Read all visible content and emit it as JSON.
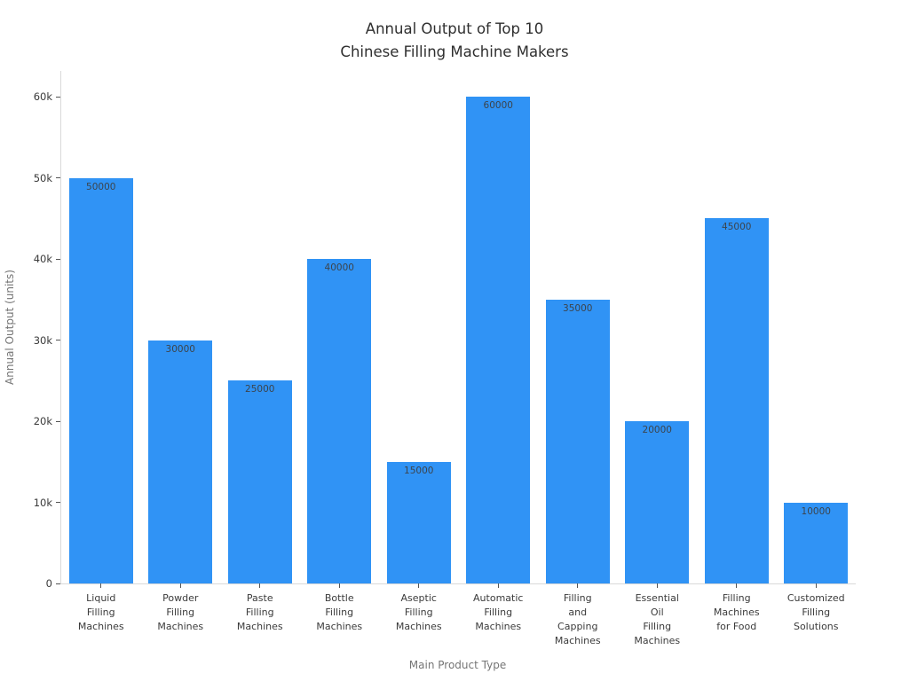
{
  "chart_data": {
    "type": "bar",
    "title": "Annual Output of Top 10\nChinese Filling Machine Makers",
    "xlabel": "Main Product Type",
    "ylabel": "Annual Output (units)",
    "categories": [
      "Liquid\nFilling\nMachines",
      "Powder\nFilling\nMachines",
      "Paste\nFilling\nMachines",
      "Bottle\nFilling\nMachines",
      "Aseptic\nFilling\nMachines",
      "Automatic\nFilling\nMachines",
      "Filling\nand\nCapping\nMachines",
      "Essential\nOil\nFilling\nMachines",
      "Filling\nMachines\nfor Food",
      "Customized\nFilling\nSolutions"
    ],
    "values": [
      50000,
      30000,
      25000,
      40000,
      15000,
      60000,
      35000,
      20000,
      45000,
      10000
    ],
    "value_labels": [
      "50000",
      "30000",
      "25000",
      "40000",
      "15000",
      "60000",
      "35000",
      "20000",
      "45000",
      "10000"
    ],
    "ylim": [
      0,
      63200
    ],
    "yticks": [
      {
        "v": 0,
        "label": "0"
      },
      {
        "v": 10000,
        "label": "10k"
      },
      {
        "v": 20000,
        "label": "20k"
      },
      {
        "v": 30000,
        "label": "30k"
      },
      {
        "v": 40000,
        "label": "40k"
      },
      {
        "v": 50000,
        "label": "50k"
      },
      {
        "v": 60000,
        "label": "60k"
      }
    ],
    "grid": false,
    "legend_position": "none",
    "colors": {
      "bar": "#3093f5",
      "value_label": "#3c444c",
      "axis_line": "#d9d9d9",
      "tick_mark": "#555555",
      "tick_label": "#3b3b3b",
      "axis_title": "#757575",
      "title": "#2f2f2f"
    }
  }
}
